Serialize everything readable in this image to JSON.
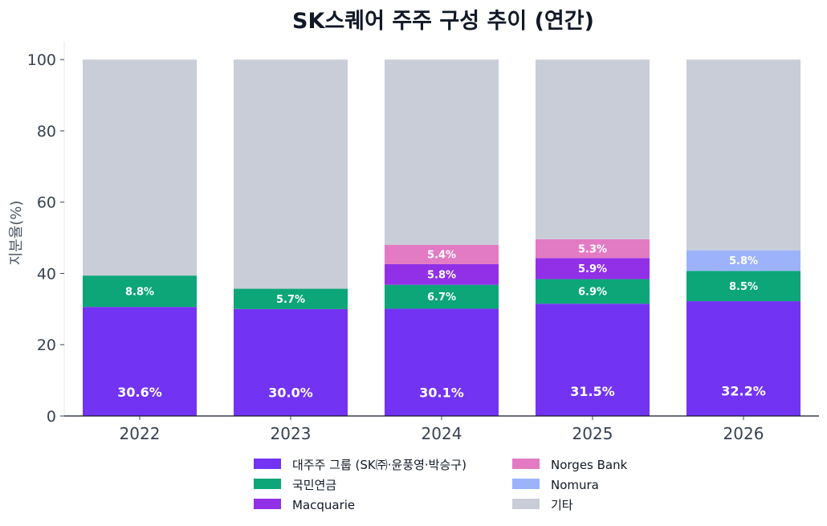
{
  "chart_data": {
    "type": "bar",
    "stacked": true,
    "title": "SK스퀘어 주주 구성 추이 (연간)",
    "xlabel": "",
    "ylabel": "지분율(%)",
    "ylim": [
      0,
      105
    ],
    "yticks": [
      "0",
      "20",
      "40",
      "60",
      "80",
      "100"
    ],
    "categories": [
      "2022",
      "2023",
      "2024",
      "2025",
      "2026"
    ],
    "legend_position": "bottom",
    "series": [
      {
        "name": "대주주 그룹 (SK㈜·윤풍영·박승구)",
        "color": "#7233f3",
        "values": [
          30.6,
          30.0,
          30.1,
          31.5,
          32.2
        ],
        "labels": [
          "30.6%",
          "30.0%",
          "30.1%",
          "31.5%",
          "32.2%"
        ]
      },
      {
        "name": "국민연금",
        "color": "#0ca678",
        "values": [
          8.8,
          5.7,
          6.7,
          6.9,
          8.5
        ],
        "labels": [
          "8.8%",
          "5.7%",
          "6.7%",
          "6.9%",
          "8.5%"
        ]
      },
      {
        "name": "Macquarie",
        "color": "#9130e6",
        "values": [
          0,
          0,
          5.8,
          5.9,
          0
        ],
        "labels": [
          "",
          "",
          "5.8%",
          "5.9%",
          ""
        ]
      },
      {
        "name": "Norges Bank",
        "color": "#e27bc3",
        "values": [
          0,
          0,
          5.4,
          5.3,
          0
        ],
        "labels": [
          "",
          "",
          "5.4%",
          "5.3%",
          ""
        ]
      },
      {
        "name": "Nomura",
        "color": "#9cb3fb",
        "values": [
          0,
          0,
          0,
          0,
          5.8
        ],
        "labels": [
          "",
          "",
          "",
          "",
          "5.8%"
        ]
      },
      {
        "name": "기타",
        "color": "#c8cdd7",
        "values": [
          60.6,
          64.3,
          52.0,
          50.4,
          53.5
        ],
        "labels": [
          "",
          "",
          "",
          "",
          ""
        ]
      }
    ],
    "legend": [
      {
        "name": "대주주 그룹 (SK㈜·윤풍영·박승구)",
        "color": "#7233f3"
      },
      {
        "name": "국민연금",
        "color": "#0ca678"
      },
      {
        "name": "Macquarie",
        "color": "#9130e6"
      },
      {
        "name": "Norges Bank",
        "color": "#e27bc3"
      },
      {
        "name": "Nomura",
        "color": "#9cb3fb"
      },
      {
        "name": "기타",
        "color": "#c8cdd7"
      }
    ]
  }
}
